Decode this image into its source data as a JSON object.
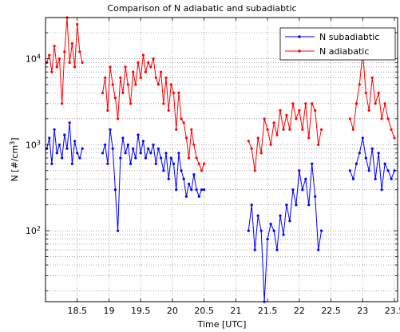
{
  "chart_data": {
    "type": "line",
    "title": "Comparison of N adiabatic and subadiabtic",
    "xlabel": "Time [UTC]",
    "ylabel": {
      "base": "N [#/cm",
      "sup": "3",
      "end": "]"
    },
    "xlim": [
      18.0,
      23.55
    ],
    "ylim": [
      15,
      30000
    ],
    "yscale": "log",
    "grid": true,
    "legend_position": "top-right",
    "x_ticks": [
      18.5,
      19,
      19.5,
      20,
      20.5,
      21,
      21.5,
      22,
      22.5,
      23,
      23.5
    ],
    "x_tick_labels": [
      "18.5",
      "19",
      "19.5",
      "20",
      "20.5",
      "21",
      "21.5",
      "22",
      "22.5",
      "23",
      "23.5"
    ],
    "y_ticks": [
      {
        "value": 100,
        "base": "10",
        "exp": "2"
      },
      {
        "value": 1000,
        "base": "10",
        "exp": "3"
      },
      {
        "value": 10000,
        "base": "10",
        "exp": "4"
      }
    ],
    "series": [
      {
        "name": "N subadiabtic",
        "color": "#0000ff",
        "x": [
          18.02,
          18.06,
          18.1,
          18.14,
          18.18,
          18.22,
          18.26,
          18.3,
          18.34,
          18.38,
          18.42,
          18.46,
          18.5,
          18.54,
          18.58,
          18.9,
          18.94,
          18.98,
          19.02,
          19.06,
          19.1,
          19.14,
          19.18,
          19.22,
          19.26,
          19.3,
          19.34,
          19.38,
          19.42,
          19.46,
          19.5,
          19.54,
          19.58,
          19.62,
          19.66,
          19.7,
          19.74,
          19.78,
          19.82,
          19.86,
          19.9,
          19.94,
          19.98,
          20.02,
          20.06,
          20.1,
          20.14,
          20.18,
          20.22,
          20.26,
          20.3,
          20.34,
          20.38,
          20.42,
          20.46,
          20.5,
          21.2,
          21.25,
          21.3,
          21.35,
          21.4,
          21.45,
          21.5,
          21.55,
          21.6,
          21.65,
          21.7,
          21.75,
          21.8,
          21.85,
          21.9,
          21.95,
          22.0,
          22.05,
          22.1,
          22.15,
          22.2,
          22.25,
          22.3,
          22.35,
          22.8,
          22.85,
          22.9,
          22.95,
          23.0,
          23.05,
          23.1,
          23.15,
          23.2,
          23.25,
          23.3,
          23.35,
          23.4,
          23.45,
          23.5
        ],
        "y": [
          900,
          1200,
          600,
          1500,
          800,
          1000,
          700,
          1300,
          900,
          1800,
          600,
          1100,
          800,
          700,
          900,
          800,
          1000,
          600,
          1500,
          900,
          300,
          100,
          700,
          1200,
          800,
          1000,
          600,
          900,
          700,
          1300,
          800,
          1100,
          700,
          900,
          800,
          1000,
          600,
          900,
          700,
          500,
          800,
          400,
          700,
          600,
          300,
          800,
          500,
          400,
          250,
          350,
          300,
          450,
          300,
          250,
          300,
          300,
          100,
          200,
          60,
          150,
          100,
          15,
          80,
          120,
          100,
          60,
          150,
          90,
          200,
          130,
          300,
          200,
          500,
          300,
          400,
          200,
          600,
          250,
          60,
          100,
          500,
          400,
          600,
          800,
          1200,
          700,
          500,
          900,
          400,
          800,
          300,
          600,
          500,
          400,
          500
        ]
      },
      {
        "name": "N adiabatic",
        "color": "#ff0000",
        "x": [
          18.02,
          18.06,
          18.1,
          18.14,
          18.18,
          18.22,
          18.26,
          18.3,
          18.34,
          18.38,
          18.42,
          18.46,
          18.5,
          18.54,
          18.58,
          18.9,
          18.94,
          18.98,
          19.02,
          19.06,
          19.1,
          19.14,
          19.18,
          19.22,
          19.26,
          19.3,
          19.34,
          19.38,
          19.42,
          19.46,
          19.5,
          19.54,
          19.58,
          19.62,
          19.66,
          19.7,
          19.74,
          19.78,
          19.82,
          19.86,
          19.9,
          19.94,
          19.98,
          20.02,
          20.06,
          20.1,
          20.14,
          20.18,
          20.22,
          20.26,
          20.3,
          20.34,
          20.38,
          20.42,
          20.46,
          20.5,
          21.2,
          21.25,
          21.3,
          21.35,
          21.4,
          21.45,
          21.5,
          21.55,
          21.6,
          21.65,
          21.7,
          21.75,
          21.8,
          21.85,
          21.9,
          21.95,
          22.0,
          22.05,
          22.1,
          22.15,
          22.2,
          22.25,
          22.3,
          22.35,
          22.8,
          22.85,
          22.9,
          22.95,
          23.0,
          23.05,
          23.1,
          23.15,
          23.2,
          23.25,
          23.3,
          23.35,
          23.4,
          23.45,
          23.5
        ],
        "y": [
          9000,
          11000,
          7000,
          14000,
          8000,
          10000,
          3000,
          12000,
          30000,
          9000,
          15000,
          8000,
          25000,
          12000,
          9000,
          4000,
          6000,
          2500,
          8000,
          5000,
          3500,
          2000,
          6000,
          4000,
          8000,
          5000,
          3000,
          7000,
          5000,
          9000,
          6000,
          11000,
          7000,
          9000,
          8000,
          10000,
          6000,
          5000,
          7000,
          3000,
          6000,
          2500,
          5000,
          4000,
          1500,
          4000,
          2000,
          1800,
          1200,
          700,
          1500,
          1000,
          700,
          600,
          500,
          600,
          1100,
          900,
          500,
          1200,
          800,
          2000,
          1500,
          1000,
          1800,
          1300,
          2500,
          1500,
          2200,
          1500,
          3000,
          2000,
          2500,
          1500,
          3000,
          1200,
          3000,
          2500,
          1000,
          1500,
          2000,
          1500,
          3000,
          5000,
          12000,
          4000,
          2500,
          6000,
          3000,
          4000,
          2000,
          3000,
          2000,
          1500,
          1200
        ]
      }
    ]
  }
}
